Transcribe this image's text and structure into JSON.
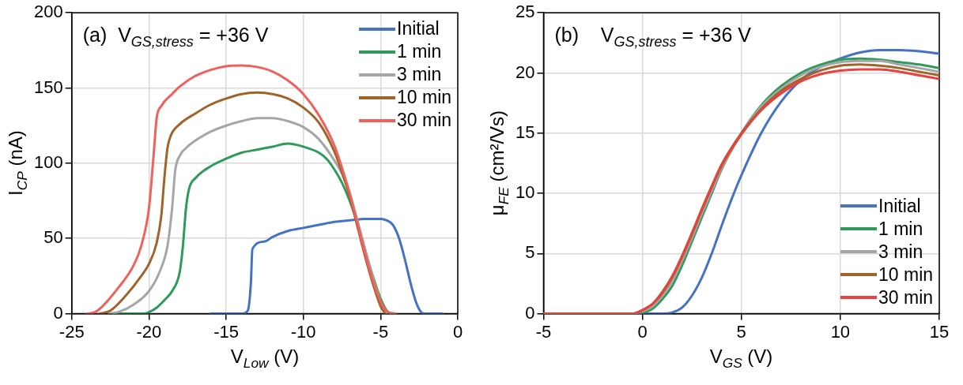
{
  "chart_data": [
    {
      "type": "line",
      "annotations": [
        "(a)  V$_{GS,stress}$ = +36 V"
      ],
      "xlabel": "V$_{Low}$ (V)",
      "ylabel": "I$_{CP}$ (nA)",
      "xlim": [
        -25,
        0
      ],
      "xticks": [
        -25,
        -20,
        -15,
        -10,
        -5,
        0
      ],
      "ylim": [
        0,
        200
      ],
      "yticks": [
        0,
        50,
        100,
        150,
        200
      ],
      "grid": true,
      "legend": "top right",
      "marker": "none",
      "line_style": "solid",
      "series": [
        {
          "name": "Initial",
          "color": "#4472c4",
          "x": [
            -16,
            -14,
            -13.6,
            -13.4,
            -13.3,
            -12.5,
            -12,
            -11,
            -10,
            -9,
            -8,
            -7,
            -6,
            -5,
            -4.6,
            -4.2,
            -3.8,
            -3.4,
            -3,
            -2.6,
            -2.2,
            -1
          ],
          "values": [
            0,
            0,
            2,
            20,
            43,
            48,
            51,
            55,
            57,
            59,
            61,
            62,
            63,
            63,
            62,
            59,
            50,
            35,
            18,
            5,
            0,
            0
          ]
        },
        {
          "name": "1 min",
          "color": "#2e9b5b",
          "x": [
            -22.3,
            -20.3,
            -20,
            -19.5,
            -19,
            -18.5,
            -18,
            -17.8,
            -17.6,
            -17.4,
            -17,
            -16,
            -15,
            -14,
            -13,
            -12,
            -11,
            -10,
            -9,
            -8.5,
            -8,
            -7.5,
            -7,
            -6.5,
            -6,
            -5.5,
            -5,
            -4.5,
            -4
          ],
          "values": [
            0,
            0,
            1,
            4,
            9,
            15,
            28,
            45,
            70,
            83,
            90,
            98,
            103,
            107,
            109,
            111,
            113,
            111,
            107,
            103,
            96,
            87,
            75,
            60,
            42,
            25,
            10,
            1,
            0
          ]
        },
        {
          "name": "3 min",
          "color": "#a6a6a6",
          "x": [
            -22.6,
            -22,
            -21,
            -20,
            -19.3,
            -18.8,
            -18.5,
            -18.3,
            -18,
            -17.5,
            -17,
            -16,
            -15,
            -14,
            -13,
            -12,
            -11,
            -10,
            -9,
            -8,
            -7.5,
            -7,
            -6.5,
            -6,
            -5.5,
            -5,
            -4.6
          ],
          "values": [
            0,
            1,
            6,
            15,
            28,
            45,
            70,
            95,
            105,
            111,
            115,
            121,
            125,
            128,
            130,
            130,
            128,
            124,
            116,
            102,
            93,
            80,
            62,
            43,
            24,
            8,
            0
          ]
        },
        {
          "name": "10 min",
          "color": "#a0632a",
          "x": [
            -23.2,
            -22.5,
            -21.5,
            -20.5,
            -20,
            -19.5,
            -19.2,
            -19,
            -18.8,
            -18.6,
            -18,
            -17,
            -16,
            -15,
            -14,
            -13,
            -12,
            -11,
            -10,
            -9,
            -8,
            -7.5,
            -7,
            -6.5,
            -6,
            -5.5,
            -5,
            -4.7
          ],
          "values": [
            0,
            2,
            12,
            25,
            33,
            47,
            65,
            90,
            110,
            118,
            126,
            133,
            139,
            143,
            146,
            147,
            146,
            143,
            137,
            127,
            108,
            94,
            78,
            58,
            38,
            20,
            5,
            0
          ]
        },
        {
          "name": "30 min",
          "color": "#f0605d",
          "x": [
            -24,
            -23.5,
            -23,
            -22,
            -21,
            -20.5,
            -20,
            -19.7,
            -19.5,
            -19.2,
            -18.5,
            -18,
            -17,
            -16,
            -15,
            -14,
            -13,
            -12,
            -11,
            -10,
            -9,
            -8,
            -7.5,
            -7,
            -6.5,
            -6,
            -5.5,
            -5,
            -4.5,
            -4
          ],
          "values": [
            0,
            1,
            5,
            17,
            32,
            45,
            70,
            105,
            130,
            138,
            146,
            151,
            158,
            162,
            164.5,
            165,
            164,
            161,
            155,
            146,
            132,
            112,
            97,
            80,
            60,
            40,
            22,
            8,
            1,
            0
          ]
        }
      ]
    },
    {
      "type": "line",
      "annotations": [
        "(b)    V$_{GS,stress}$ = +36 V"
      ],
      "xlabel": "V$_{GS}$ (V)",
      "ylabel": "μ$_{FE}$ (cm²/Vs)",
      "xlim": [
        -5,
        15
      ],
      "xticks": [
        -5,
        0,
        5,
        10,
        15
      ],
      "ylim": [
        0,
        25
      ],
      "yticks": [
        0,
        5,
        10,
        15,
        20,
        25
      ],
      "grid": true,
      "legend": "bottom right",
      "marker": "none",
      "line_style": "solid",
      "series": [
        {
          "name": "Initial",
          "color": "#4472c4",
          "x": [
            -5,
            1,
            1.5,
            2,
            2.5,
            3,
            3.5,
            4,
            4.5,
            5,
            6,
            7,
            8,
            9,
            10,
            11,
            12,
            13,
            14,
            15
          ],
          "values": [
            0,
            0,
            0.1,
            0.5,
            1.5,
            3,
            5,
            7.3,
            9.5,
            11.5,
            15,
            17.6,
            19.4,
            20.5,
            21.2,
            21.7,
            21.9,
            21.9,
            21.8,
            21.6
          ]
        },
        {
          "name": "1 min",
          "color": "#2e9b5b",
          "x": [
            -5,
            -0.5,
            0,
            0.5,
            1,
            1.5,
            2,
            2.5,
            3,
            3.5,
            4,
            5,
            6,
            7,
            8,
            9,
            10,
            11,
            12,
            13,
            14,
            15
          ],
          "values": [
            0,
            0,
            0.1,
            0.4,
            1.2,
            2.3,
            4,
            6,
            8,
            10,
            12,
            15,
            17.3,
            18.9,
            20,
            20.7,
            21.1,
            21.2,
            21.1,
            20.9,
            20.7,
            20.4
          ]
        },
        {
          "name": "3 min",
          "color": "#a6a6a6",
          "x": [
            -5,
            -0.5,
            0,
            0.5,
            1,
            1.5,
            2,
            2.5,
            3,
            3.5,
            4,
            5,
            6,
            7,
            8,
            9,
            10,
            11,
            12,
            13,
            14,
            15
          ],
          "values": [
            0,
            0,
            0.2,
            0.6,
            1.5,
            2.7,
            4.4,
            6.3,
            8.3,
            10.2,
            12.1,
            15,
            17.2,
            18.7,
            19.8,
            20.5,
            20.9,
            21,
            21,
            20.7,
            20.4,
            20.1
          ]
        },
        {
          "name": "10 min",
          "color": "#a0632a",
          "x": [
            -5,
            -0.5,
            0,
            0.5,
            1,
            1.5,
            2,
            2.5,
            3,
            3.5,
            4,
            5,
            6,
            7,
            8,
            9,
            10,
            11,
            12,
            13,
            14,
            15
          ],
          "values": [
            0,
            0,
            0.3,
            0.8,
            1.8,
            3.1,
            4.8,
            6.7,
            8.7,
            10.6,
            12.4,
            15,
            17,
            18.5,
            19.5,
            20.2,
            20.6,
            20.7,
            20.6,
            20.4,
            20.1,
            19.8
          ]
        },
        {
          "name": "30 min",
          "color": "#e8423f",
          "x": [
            -5,
            -0.5,
            0,
            0.5,
            1,
            1.5,
            2,
            2.5,
            3,
            3.5,
            4,
            5,
            6,
            7,
            8,
            9,
            10,
            11,
            12,
            13,
            14,
            15
          ],
          "values": [
            0,
            0,
            0.3,
            0.8,
            1.7,
            3,
            4.7,
            6.6,
            8.6,
            10.5,
            12.3,
            14.9,
            16.9,
            18.3,
            19.3,
            19.9,
            20.2,
            20.3,
            20.3,
            20.1,
            19.8,
            19.5
          ]
        }
      ]
    }
  ]
}
